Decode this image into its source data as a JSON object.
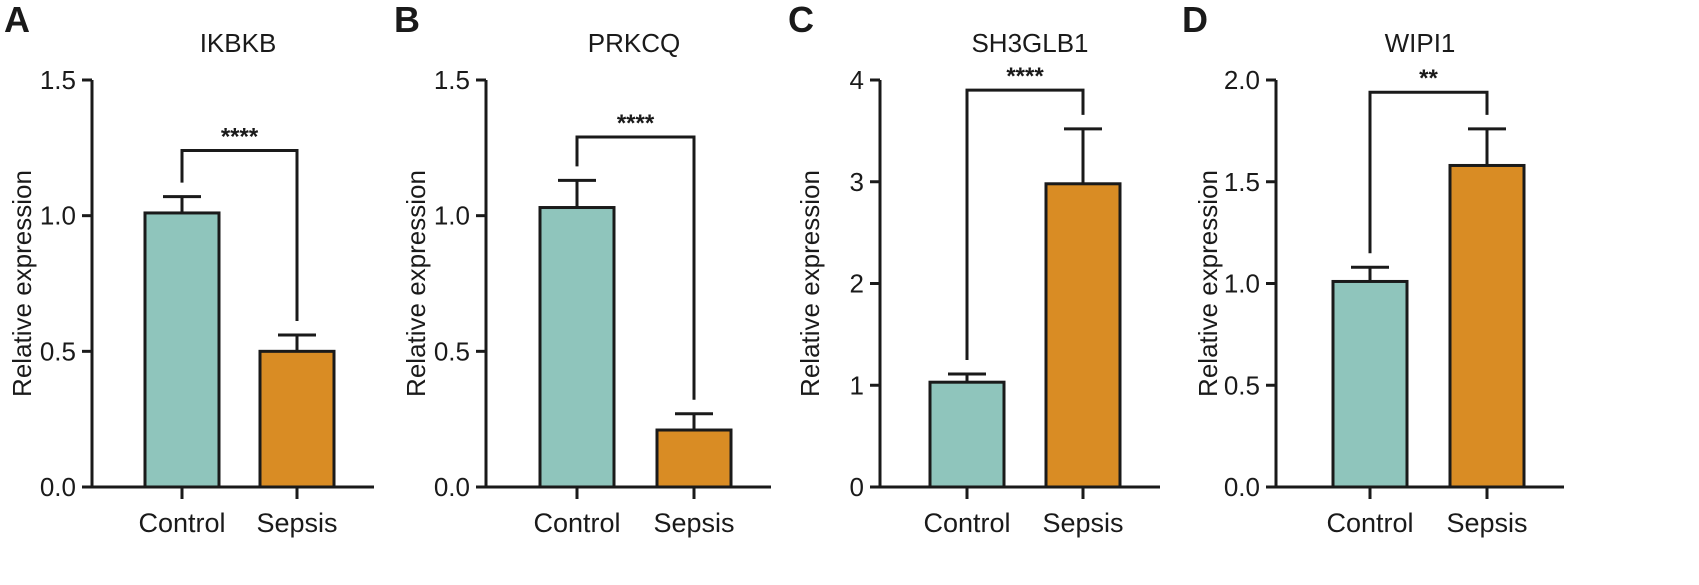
{
  "figure": {
    "colors": {
      "control": "#8fc5bc",
      "sepsis": "#d98c24",
      "ink": "#1a1a1a"
    }
  },
  "chart_data": [
    {
      "panel": "A",
      "type": "bar",
      "title": "IKBKB",
      "ylabel": "Relative expression",
      "xlabel": "",
      "categories": [
        "Control",
        "Sepsis"
      ],
      "values": [
        1.01,
        0.5
      ],
      "errors": [
        0.06,
        0.06
      ],
      "ylim": [
        0,
        1.5
      ],
      "yticks": [
        0.0,
        0.5,
        1.0,
        1.5
      ],
      "ytick_labels": [
        "0.0",
        "0.5",
        "1.0",
        "1.5"
      ],
      "significance": "****",
      "bracket_y": 1.24
    },
    {
      "panel": "B",
      "type": "bar",
      "title": "PRKCQ",
      "ylabel": "Relative expression",
      "xlabel": "",
      "categories": [
        "Control",
        "Sepsis"
      ],
      "values": [
        1.03,
        0.21
      ],
      "errors": [
        0.1,
        0.06
      ],
      "ylim": [
        0,
        1.5
      ],
      "yticks": [
        0.0,
        0.5,
        1.0,
        1.5
      ],
      "ytick_labels": [
        "0.0",
        "0.5",
        "1.0",
        "1.5"
      ],
      "significance": "****",
      "bracket_y": 1.29
    },
    {
      "panel": "C",
      "type": "bar",
      "title": "SH3GLB1",
      "ylabel": "Relative expression",
      "xlabel": "",
      "categories": [
        "Control",
        "Sepsis"
      ],
      "values": [
        1.03,
        2.98
      ],
      "errors": [
        0.08,
        0.54
      ],
      "ylim": [
        0,
        4
      ],
      "yticks": [
        0,
        1,
        2,
        3,
        4
      ],
      "ytick_labels": [
        "0",
        "1",
        "2",
        "3",
        "4"
      ],
      "significance": "****",
      "bracket_y": 3.9
    },
    {
      "panel": "D",
      "type": "bar",
      "title": "WIPI1",
      "ylabel": "Relative expression",
      "xlabel": "",
      "categories": [
        "Control",
        "Sepsis"
      ],
      "values": [
        1.01,
        1.58
      ],
      "errors": [
        0.07,
        0.18
      ],
      "ylim": [
        0,
        2.0
      ],
      "yticks": [
        0.0,
        0.5,
        1.0,
        1.5,
        2.0
      ],
      "ytick_labels": [
        "0.0",
        "0.5",
        "1.0",
        "1.5",
        "2.0"
      ],
      "significance": "**",
      "bracket_y": 1.94
    }
  ]
}
